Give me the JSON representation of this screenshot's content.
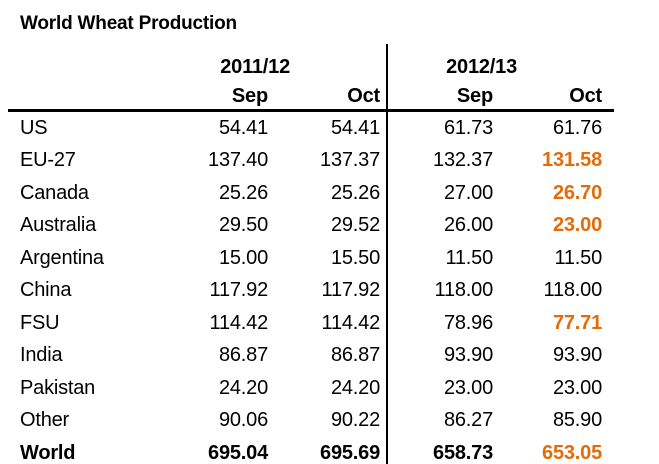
{
  "chart_data": {
    "type": "table",
    "title": "World Wheat Production",
    "group_headers": [
      "2011/12",
      "2012/13"
    ],
    "column_headers": [
      "Sep",
      "Oct",
      "Sep",
      "Oct"
    ],
    "rows": [
      {
        "label": "US",
        "values": [
          "54.41",
          "54.41",
          "61.73",
          "61.76"
        ],
        "bold": false,
        "last_value_highlighted": false
      },
      {
        "label": "EU-27",
        "values": [
          "137.40",
          "137.37",
          "132.37",
          "131.58"
        ],
        "bold": false,
        "last_value_highlighted": true
      },
      {
        "label": "Canada",
        "values": [
          "25.26",
          "25.26",
          "27.00",
          "26.70"
        ],
        "bold": false,
        "last_value_highlighted": true
      },
      {
        "label": "Australia",
        "values": [
          "29.50",
          "29.52",
          "26.00",
          "23.00"
        ],
        "bold": false,
        "last_value_highlighted": true
      },
      {
        "label": "Argentina",
        "values": [
          "15.00",
          "15.50",
          "11.50",
          "11.50"
        ],
        "bold": false,
        "last_value_highlighted": false
      },
      {
        "label": "China",
        "values": [
          "117.92",
          "117.92",
          "118.00",
          "118.00"
        ],
        "bold": false,
        "last_value_highlighted": false
      },
      {
        "label": "FSU",
        "values": [
          "114.42",
          "114.42",
          "78.96",
          "77.71"
        ],
        "bold": false,
        "last_value_highlighted": true
      },
      {
        "label": "India",
        "values": [
          "86.87",
          "86.87",
          "93.90",
          "93.90"
        ],
        "bold": false,
        "last_value_highlighted": false
      },
      {
        "label": "Pakistan",
        "values": [
          "24.20",
          "24.20",
          "23.00",
          "23.00"
        ],
        "bold": false,
        "last_value_highlighted": false
      },
      {
        "label": "Other",
        "values": [
          "90.06",
          "90.22",
          "86.27",
          "85.90"
        ],
        "bold": false,
        "last_value_highlighted": false
      },
      {
        "label": "World",
        "values": [
          "695.04",
          "695.69",
          "658.73",
          "653.05"
        ],
        "bold": true,
        "last_value_highlighted": true
      }
    ],
    "colors": {
      "text": "#000000",
      "highlight_orange": "#E36C0A",
      "background": "#FFFFFF",
      "rule_lines": "#000000"
    },
    "layout_hints": {
      "highlight_meaning": "changed values in latest (Oct 2012/13) column shown in bold orange",
      "separator": "vertical rule between 2011/12 and 2012/13 column groups; thick horizontal rule under Sep/Oct header row"
    }
  }
}
